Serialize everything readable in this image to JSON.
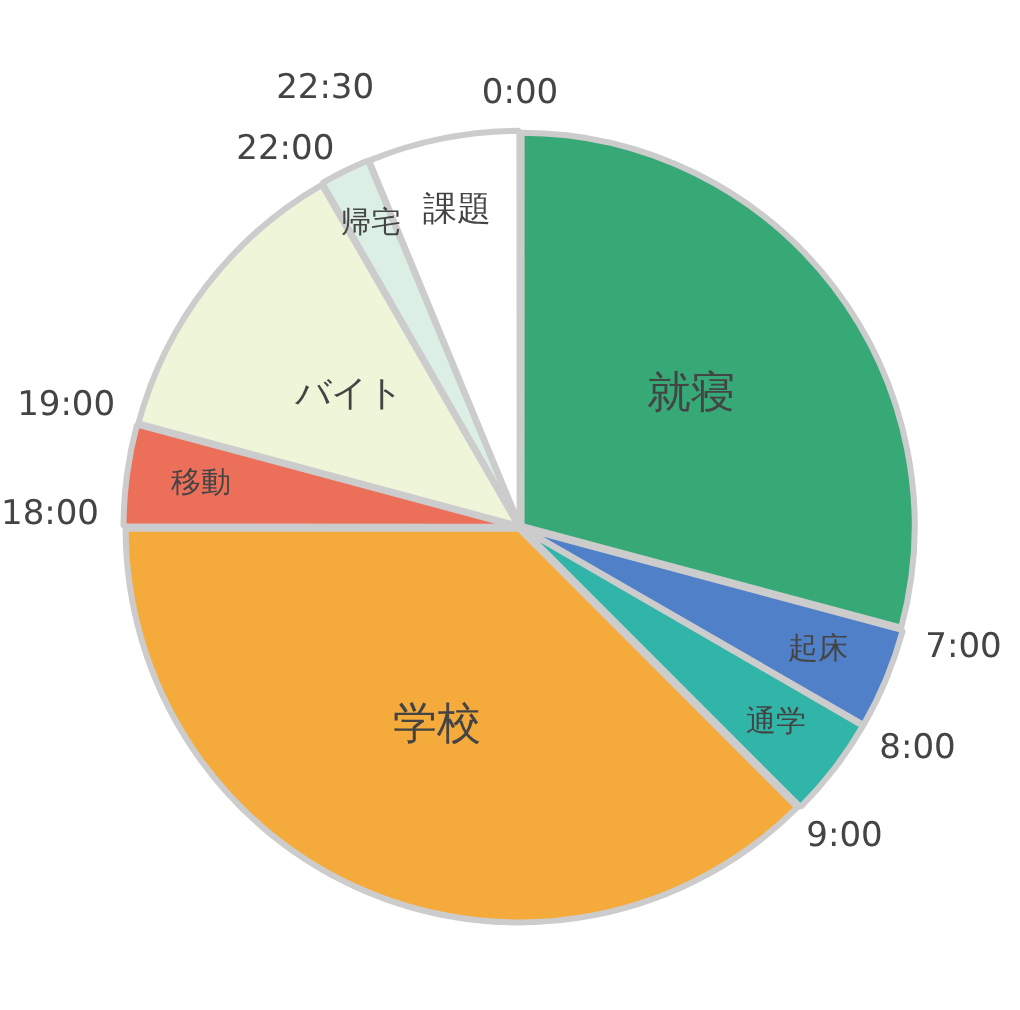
{
  "chart_data": {
    "type": "pie",
    "categories": [
      "就寝",
      "起床",
      "通学",
      "学校",
      "移動",
      "バイト",
      "帰宅",
      "課題"
    ],
    "values": [
      29.17,
      4.17,
      4.17,
      37.5,
      4.17,
      12.5,
      2.08,
      6.24
    ],
    "colors": [
      "#36a977",
      "#5080c8",
      "#30b5a8",
      "#f5ab3c",
      "#ec6f5a",
      "#eef5d8",
      "#dcefe4",
      "#ffffff"
    ],
    "annotations": [
      "0:00",
      "7:00",
      "8:00",
      "9:00",
      "18:00",
      "19:00",
      "22:00",
      "22:30"
    ],
    "legend": false
  }
}
